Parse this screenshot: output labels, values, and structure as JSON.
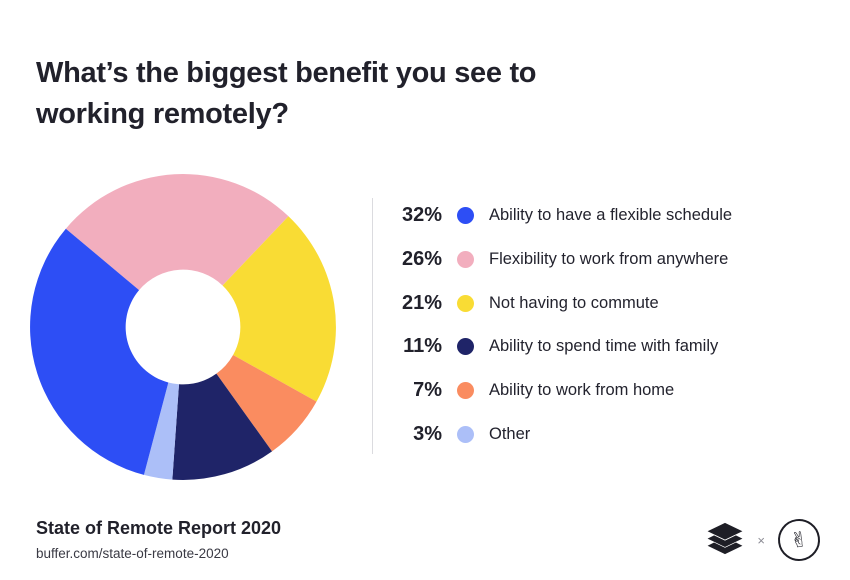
{
  "header": {
    "title_lines": [
      "What’s the biggest benefit you see to",
      "working remotely?"
    ]
  },
  "chart_data": {
    "type": "pie",
    "subtype": "donut",
    "title": "What’s the biggest benefit you see to working remotely?",
    "unit": "%",
    "legend_position": "right",
    "start_angle_deg": 310,
    "inner_radius_ratio": 0.375,
    "draw_order": [
      1,
      2,
      4,
      3,
      5,
      0
    ],
    "series": [
      {
        "key": "flexible-schedule",
        "label": "Ability to have a flexible schedule",
        "value": 32,
        "color": "#2D4EF5"
      },
      {
        "key": "work-from-anywhere",
        "label": "Flexibility to work from anywhere",
        "value": 26,
        "color": "#F2AEBE"
      },
      {
        "key": "no-commute",
        "label": "Not having to commute",
        "value": 21,
        "color": "#F9DC34"
      },
      {
        "key": "time-with-family",
        "label": "Ability to spend time with family",
        "value": 11,
        "color": "#1F2468"
      },
      {
        "key": "work-from-home",
        "label": "Ability to work from home",
        "value": 7,
        "color": "#FA8C60"
      },
      {
        "key": "other",
        "label": "Other",
        "value": 3,
        "color": "#ACBFF8"
      }
    ]
  },
  "footer": {
    "report_title": "State of Remote Report 2020",
    "report_url": "buffer.com/state-of-remote-2020"
  },
  "logos": {
    "buffer": "buffer-stacked-layers-icon",
    "separator": "×",
    "partner": "peace-hand-icon",
    "color": "#1E1E26"
  }
}
